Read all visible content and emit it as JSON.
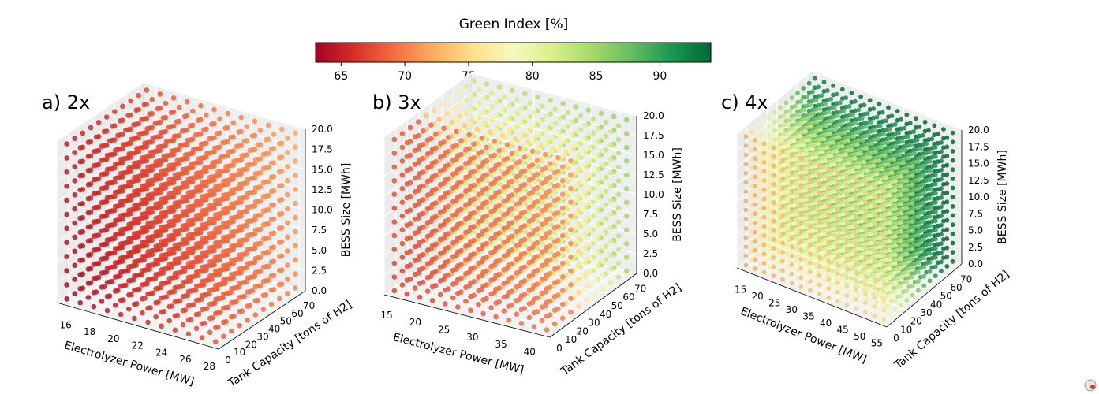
{
  "colorbar": {
    "title": "Green Index [%]",
    "min": 63,
    "max": 94,
    "ticks": [
      "65",
      "70",
      "75",
      "80",
      "85",
      "90"
    ],
    "tick_values": [
      65,
      70,
      75,
      80,
      85,
      90
    ],
    "colormap": "RdYlGn",
    "stops": [
      "#a50026",
      "#d73027",
      "#f46d43",
      "#fdae61",
      "#fee08b",
      "#f6f9be",
      "#d9ef8b",
      "#a6d96a",
      "#66bd63",
      "#1a9850",
      "#006837"
    ]
  },
  "chart_data": [
    {
      "type": "scatter",
      "panel_label": "a) 2x",
      "xlabel": "Electrolyzer Power [MW]",
      "ylabel": "Tank Capacity [tons of H2]",
      "zlabel": "BESS Size [MWh]",
      "x_ticks": [
        "16",
        "18",
        "20",
        "22",
        "24",
        "26",
        "28"
      ],
      "y_ticks": [
        "0",
        "10",
        "20",
        "30",
        "40",
        "50",
        "60",
        "70"
      ],
      "z_ticks": [
        "0.0",
        "2.5",
        "5.0",
        "7.5",
        "10.0",
        "12.5",
        "15.0",
        "17.5",
        "20.0"
      ],
      "xlim": [
        15,
        28.5
      ],
      "ylim": [
        0,
        75
      ],
      "zlim": [
        0,
        20
      ],
      "green_index_range": [
        63,
        72
      ],
      "grid": true
    },
    {
      "type": "scatter",
      "panel_label": "b) 3x",
      "xlabel": "Electrolyzer Power [MW]",
      "ylabel": "Tank Capacity [tons of H2]",
      "zlabel": "BESS Size [MWh]",
      "x_ticks": [
        "15",
        "20",
        "25",
        "30",
        "35",
        "40"
      ],
      "y_ticks": [
        "0",
        "10",
        "20",
        "30",
        "40",
        "50",
        "60",
        "70"
      ],
      "z_ticks": [
        "0.0",
        "2.5",
        "5.0",
        "7.5",
        "10.0",
        "12.5",
        "15.0",
        "17.5",
        "20.0"
      ],
      "xlim": [
        14,
        43
      ],
      "ylim": [
        0,
        75
      ],
      "zlim": [
        0,
        20
      ],
      "green_index_range": [
        66,
        84
      ],
      "grid": true
    },
    {
      "type": "scatter",
      "panel_label": "c) 4x",
      "xlabel": "Electrolyzer Power [MW]",
      "ylabel": "Tank Capacity [tons of H2]",
      "zlabel": "BESS Size [MWh]",
      "x_ticks": [
        "15",
        "20",
        "25",
        "30",
        "35",
        "40",
        "45",
        "50",
        "55"
      ],
      "y_ticks": [
        "0",
        "10",
        "20",
        "30",
        "40",
        "50",
        "60",
        "70"
      ],
      "z_ticks": [
        "0.0",
        "2.5",
        "5.0",
        "7.5",
        "10.0",
        "12.5",
        "15.0",
        "17.5",
        "20.0"
      ],
      "xlim": [
        13,
        57
      ],
      "ylim": [
        0,
        75
      ],
      "zlim": [
        0,
        20
      ],
      "green_index_range": [
        70,
        94
      ],
      "grid": true
    }
  ]
}
